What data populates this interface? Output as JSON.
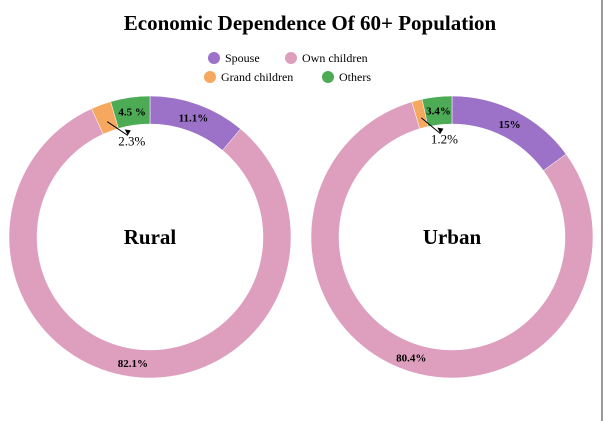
{
  "chart_data": {
    "type": "pie",
    "title": "Economic Dependence Of 60+ Population",
    "legend": {
      "placement": "top-center",
      "entries": [
        {
          "name": "Spouse",
          "color": "#9b72c8"
        },
        {
          "name": "Own children",
          "color": "#dd9fbd"
        },
        {
          "name": "Grand children",
          "color": "#f6a95e"
        },
        {
          "name": "Others",
          "color": "#4eab55"
        }
      ]
    },
    "charts": [
      {
        "name": "Rural",
        "slices": [
          {
            "category": "Spouse",
            "value": 11.1,
            "label": "11.1%"
          },
          {
            "category": "Own children",
            "value": 82.1,
            "label": "82.1%"
          },
          {
            "category": "Grand children",
            "value": 2.3,
            "label": "2.3%"
          },
          {
            "category": "Others",
            "value": 4.5,
            "label": "4.5 %"
          }
        ]
      },
      {
        "name": "Urban",
        "slices": [
          {
            "category": "Spouse",
            "value": 15,
            "label": "15%"
          },
          {
            "category": "Own children",
            "value": 80.4,
            "label": "80.4%"
          },
          {
            "category": "Grand children",
            "value": 1.2,
            "label": "1.2%"
          },
          {
            "category": "Others",
            "value": 3.4,
            "label": "3.4%"
          }
        ]
      }
    ]
  }
}
